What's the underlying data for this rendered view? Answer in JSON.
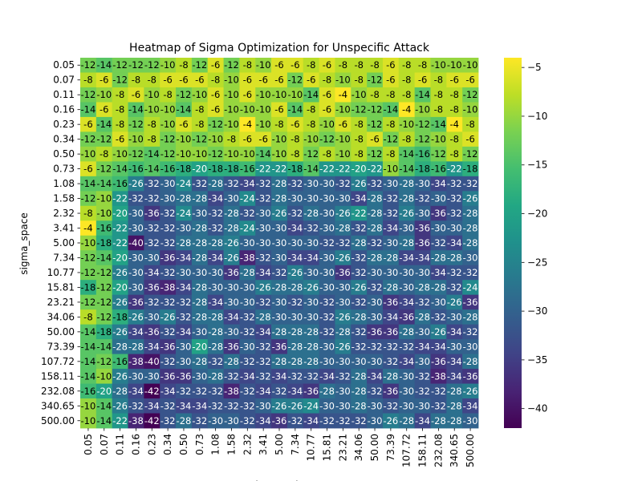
{
  "chart_data": {
    "type": "heatmap",
    "title": "Heatmap of Sigma Optimization for Unspecific Attack",
    "ylabel": "sigma_space",
    "xlabel": "sigma_color",
    "x_categories": [
      "0.05",
      "0.07",
      "0.11",
      "0.16",
      "0.23",
      "0.34",
      "0.50",
      "0.73",
      "1.08",
      "1.58",
      "2.32",
      "3.41",
      "5.00",
      "7.34",
      "10.77",
      "15.81",
      "23.21",
      "34.06",
      "50.00",
      "73.39",
      "107.72",
      "158.11",
      "232.08",
      "340.65",
      "500.00"
    ],
    "y_categories": [
      "0.05",
      "0.07",
      "0.11",
      "0.16",
      "0.23",
      "0.34",
      "0.50",
      "0.73",
      "1.08",
      "1.58",
      "2.32",
      "3.41",
      "5.00",
      "7.34",
      "10.77",
      "15.81",
      "23.21",
      "34.06",
      "50.00",
      "73.39",
      "107.72",
      "158.11",
      "232.08",
      "340.65",
      "500.00"
    ],
    "values": [
      [
        -12,
        -14,
        -12,
        -12,
        -12,
        -10,
        -8,
        -12,
        -6,
        -12,
        -8,
        -10,
        -6,
        -6,
        -8,
        -6,
        -8,
        -8,
        -8,
        -6,
        -8,
        -8,
        -10,
        -10,
        -10
      ],
      [
        -8,
        -6,
        -12,
        -8,
        -8,
        -6,
        -6,
        -6,
        -8,
        -10,
        -6,
        -6,
        -6,
        -12,
        -6,
        -8,
        -10,
        -8,
        -12,
        -6,
        -8,
        -6,
        -8,
        -6,
        -6
      ],
      [
        -12,
        -10,
        -8,
        -6,
        -10,
        -8,
        -12,
        -10,
        -6,
        -10,
        -6,
        -10,
        -10,
        -10,
        -14,
        -6,
        -4,
        -10,
        -8,
        -8,
        -8,
        -14,
        -8,
        -8,
        -12
      ],
      [
        -14,
        -6,
        -8,
        -14,
        -10,
        -10,
        -14,
        -8,
        -6,
        -10,
        -10,
        -10,
        -6,
        -14,
        -8,
        -6,
        -10,
        -12,
        -12,
        -14,
        -4,
        -10,
        -8,
        -8,
        -10
      ],
      [
        -6,
        -14,
        -8,
        -12,
        -8,
        -10,
        -6,
        -8,
        -12,
        -10,
        -4,
        -10,
        -8,
        -6,
        -8,
        -10,
        -6,
        -8,
        -12,
        -8,
        -10,
        -12,
        -14,
        -4,
        -8
      ],
      [
        -12,
        -12,
        -6,
        -10,
        -8,
        -12,
        -10,
        -12,
        -10,
        -8,
        -6,
        -6,
        -10,
        -8,
        -10,
        -12,
        -10,
        -8,
        -6,
        -12,
        -8,
        -12,
        -10,
        -8,
        -6
      ],
      [
        -10,
        -8,
        -10,
        -12,
        -14,
        -12,
        -10,
        -10,
        -12,
        -10,
        -10,
        -14,
        -10,
        -8,
        -12,
        -8,
        -10,
        -8,
        -12,
        -8,
        -14,
        -16,
        -12,
        -8,
        -12
      ],
      [
        -6,
        -12,
        -14,
        -16,
        -14,
        -16,
        -18,
        -20,
        -18,
        -18,
        -16,
        -22,
        -22,
        -18,
        -14,
        -22,
        -22,
        -20,
        -22,
        -10,
        -14,
        -18,
        -16,
        -22,
        -18
      ],
      [
        -14,
        -14,
        -16,
        -26,
        -32,
        -30,
        -24,
        -32,
        -28,
        -32,
        -34,
        -32,
        -28,
        -32,
        -30,
        -30,
        -32,
        -26,
        -32,
        -30,
        -28,
        -30,
        -34,
        -32,
        -32
      ],
      [
        -12,
        -10,
        -22,
        -32,
        -32,
        -30,
        -28,
        -28,
        -34,
        -30,
        -24,
        -32,
        -28,
        -30,
        -30,
        -30,
        -30,
        -34,
        -28,
        -32,
        -28,
        -32,
        -30,
        -32,
        -26
      ],
      [
        -8,
        -10,
        -20,
        -30,
        -36,
        -32,
        -24,
        -30,
        -32,
        -28,
        -32,
        -30,
        -26,
        -32,
        -28,
        -30,
        -26,
        -22,
        -28,
        -32,
        -26,
        -30,
        -36,
        -32,
        -28
      ],
      [
        -4,
        -16,
        -22,
        -30,
        -32,
        -32,
        -30,
        -28,
        -32,
        -28,
        -24,
        -30,
        -30,
        -34,
        -32,
        -30,
        -28,
        -32,
        -28,
        -34,
        -30,
        -36,
        -30,
        -30,
        -28
      ],
      [
        -10,
        -18,
        -22,
        -40,
        -32,
        -32,
        -28,
        -28,
        -28,
        -26,
        -30,
        -30,
        -30,
        -30,
        -30,
        -32,
        -32,
        -28,
        -32,
        -30,
        -28,
        -36,
        -32,
        -34,
        -28
      ],
      [
        -12,
        -14,
        -20,
        -30,
        -30,
        -36,
        -34,
        -28,
        -34,
        -26,
        -38,
        -32,
        -30,
        -34,
        -34,
        -30,
        -26,
        -32,
        -28,
        -28,
        -34,
        -34,
        -28,
        -28,
        -30
      ],
      [
        -12,
        -12,
        -26,
        -30,
        -34,
        -32,
        -30,
        -30,
        -30,
        -36,
        -28,
        -34,
        -32,
        -26,
        -30,
        -30,
        -36,
        -32,
        -30,
        -30,
        -30,
        -30,
        -34,
        -32,
        -32
      ],
      [
        -18,
        -12,
        -20,
        -30,
        -36,
        -38,
        -34,
        -28,
        -30,
        -30,
        -30,
        -26,
        -28,
        -28,
        -26,
        -30,
        -30,
        -26,
        -32,
        -28,
        -30,
        -28,
        -28,
        -32,
        -24
      ],
      [
        -12,
        -12,
        -26,
        -36,
        -32,
        -32,
        -32,
        -28,
        -34,
        -30,
        -30,
        -32,
        -30,
        -32,
        -30,
        -32,
        -30,
        -32,
        -30,
        -36,
        -34,
        -32,
        -30,
        -26,
        -36
      ],
      [
        -8,
        -12,
        -18,
        -26,
        -30,
        -26,
        -32,
        -28,
        -28,
        -34,
        -32,
        -28,
        -30,
        -30,
        -30,
        -32,
        -26,
        -28,
        -30,
        -34,
        -36,
        -28,
        -32,
        -30,
        -28
      ],
      [
        -14,
        -18,
        -26,
        -34,
        -36,
        -32,
        -34,
        -30,
        -28,
        -30,
        -32,
        -34,
        -28,
        -28,
        -28,
        -32,
        -28,
        -32,
        -36,
        -36,
        -28,
        -30,
        -26,
        -34,
        -32
      ],
      [
        -14,
        -14,
        -28,
        -28,
        -34,
        -36,
        -30,
        -20,
        -28,
        -36,
        -30,
        -32,
        -36,
        -28,
        -28,
        -30,
        -26,
        -32,
        -32,
        -32,
        -32,
        -34,
        -34,
        -30,
        -30
      ],
      [
        -14,
        -12,
        -16,
        -38,
        -40,
        -32,
        -30,
        -28,
        -32,
        -28,
        -32,
        -32,
        -28,
        -28,
        -28,
        -30,
        -30,
        -30,
        -30,
        -32,
        -34,
        -30,
        -36,
        -34,
        -28
      ],
      [
        -14,
        -10,
        -26,
        -30,
        -30,
        -36,
        -36,
        -30,
        -28,
        -32,
        -34,
        -32,
        -34,
        -32,
        -32,
        -34,
        -32,
        -28,
        -34,
        -28,
        -30,
        -32,
        -38,
        -34,
        -36
      ],
      [
        -16,
        -20,
        -28,
        -34,
        -42,
        -34,
        -32,
        -32,
        -32,
        -38,
        -32,
        -34,
        -32,
        -34,
        -36,
        -28,
        -30,
        -28,
        -32,
        -36,
        -30,
        -32,
        -32,
        -28,
        -26
      ],
      [
        -10,
        -14,
        -26,
        -32,
        -34,
        -32,
        -34,
        -34,
        -32,
        -32,
        -32,
        -30,
        -26,
        -26,
        -24,
        -30,
        -30,
        -28,
        -30,
        -32,
        -30,
        -30,
        -32,
        -28,
        -34
      ],
      [
        -10,
        -14,
        -22,
        -38,
        -42,
        -32,
        -28,
        -32,
        -30,
        -30,
        -32,
        -34,
        -36,
        -32,
        -34,
        -32,
        -32,
        -32,
        -30,
        -26,
        -28,
        -34,
        -28,
        -28,
        -30
      ]
    ],
    "colormap": "viridis",
    "vmin": -42,
    "vmax": -4,
    "colorbar_ticks": [
      -5,
      -10,
      -15,
      -20,
      -25,
      -30,
      -35,
      -40
    ],
    "colorbar_tick_labels": [
      "−5",
      "−10",
      "−15",
      "−20",
      "−25",
      "−30",
      "−35",
      "−40"
    ]
  }
}
